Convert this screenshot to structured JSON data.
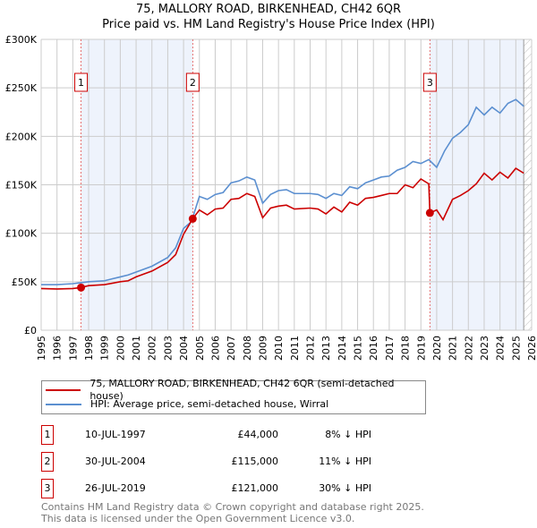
{
  "chart_data": {
    "type": "line",
    "title": "75, MALLORY ROAD, BIRKENHEAD, CH42 6QR",
    "subtitle": "Price paid vs. HM Land Registry's House Price Index (HPI)",
    "xlim": [
      1995,
      2026
    ],
    "ylim": [
      0,
      300000
    ],
    "y_ticks": [
      {
        "v": 0,
        "label": "£0"
      },
      {
        "v": 50000,
        "label": "£50K"
      },
      {
        "v": 100000,
        "label": "£100K"
      },
      {
        "v": 150000,
        "label": "£150K"
      },
      {
        "v": 200000,
        "label": "£200K"
      },
      {
        "v": 250000,
        "label": "£250K"
      },
      {
        "v": 300000,
        "label": "£300K"
      }
    ],
    "x_ticks": [
      "1995",
      "1996",
      "1997",
      "1998",
      "1999",
      "2000",
      "2001",
      "2002",
      "2003",
      "2004",
      "2005",
      "2006",
      "2007",
      "2008",
      "2009",
      "2010",
      "2011",
      "2012",
      "2013",
      "2014",
      "2015",
      "2016",
      "2017",
      "2018",
      "2019",
      "2020",
      "2021",
      "2022",
      "2023",
      "2024",
      "2025",
      "2026"
    ],
    "grid": true,
    "series": [
      {
        "name": "75, MALLORY ROAD, BIRKENHEAD, CH42 6QR (semi-detached house)",
        "color": "#cc0000",
        "x": [
          1995,
          1996,
          1997,
          1997.5,
          1998,
          1999,
          2000,
          2000.5,
          2001,
          2002,
          2003,
          2003.5,
          2004,
          2004.58,
          2005,
          2005.5,
          2006,
          2006.5,
          2007,
          2007.5,
          2008,
          2008.5,
          2009,
          2009.5,
          2010,
          2010.5,
          2011,
          2012,
          2012.5,
          2013,
          2013.5,
          2014,
          2014.5,
          2015,
          2015.5,
          2016,
          2016.5,
          2017,
          2017.5,
          2018,
          2018.5,
          2019,
          2019.5,
          2019.57,
          2020,
          2020.4,
          2021,
          2021.5,
          2022,
          2022.5,
          2023,
          2023.5,
          2024,
          2024.5,
          2025,
          2025.5
        ],
        "y": [
          43000,
          42500,
          43000,
          44000,
          46000,
          47000,
          50000,
          51000,
          55000,
          61000,
          70000,
          78000,
          99000,
          115000,
          124000,
          119000,
          125000,
          126000,
          135000,
          136000,
          141000,
          138000,
          116000,
          126000,
          128000,
          129000,
          125000,
          126000,
          125000,
          120000,
          127000,
          122000,
          132000,
          129000,
          136000,
          137000,
          139000,
          141000,
          141000,
          150000,
          147000,
          156000,
          151000,
          121000,
          124000,
          114000,
          135000,
          139000,
          144000,
          151000,
          162000,
          155000,
          163000,
          157000,
          167000,
          162000
        ]
      },
      {
        "name": "HPI: Average price, semi-detached house, Wirral",
        "color": "#5b8fd0",
        "x": [
          1995,
          1996,
          1997,
          1997.5,
          1998,
          1999,
          2000,
          2000.5,
          2001,
          2002,
          2003,
          2003.5,
          2004,
          2004.5,
          2005,
          2005.5,
          2006,
          2006.5,
          2007,
          2007.5,
          2008,
          2008.5,
          2009,
          2009.5,
          2010,
          2010.5,
          2011,
          2012,
          2012.5,
          2013,
          2013.5,
          2014,
          2014.5,
          2015,
          2015.5,
          2016,
          2016.5,
          2017,
          2017.5,
          2018,
          2018.5,
          2019,
          2019.5,
          2020,
          2020.5,
          2021,
          2021.5,
          2022,
          2022.5,
          2023,
          2023.5,
          2024,
          2024.5,
          2025,
          2025.5
        ],
        "y": [
          47000,
          47000,
          48000,
          49000,
          50000,
          51000,
          55000,
          57000,
          60000,
          66000,
          75000,
          85000,
          105000,
          112000,
          138000,
          135000,
          140000,
          142000,
          152000,
          154000,
          158000,
          155000,
          131000,
          140000,
          144000,
          145000,
          141000,
          141000,
          140000,
          136000,
          141000,
          139000,
          148000,
          146000,
          152000,
          155000,
          158000,
          159000,
          165000,
          168000,
          174000,
          172000,
          176000,
          168000,
          185000,
          198000,
          204000,
          212000,
          230000,
          222000,
          230000,
          224000,
          234000,
          238000,
          231000
        ]
      }
    ],
    "sales": [
      {
        "id": "1",
        "x": 1997.52,
        "y": 44000,
        "date": "10-JUL-1997",
        "price": "£44,000",
        "hpi": "8% ↓ HPI"
      },
      {
        "id": "2",
        "x": 2004.58,
        "y": 115000,
        "date": "30-JUL-2004",
        "price": "£115,000",
        "hpi": "11% ↓ HPI"
      },
      {
        "id": "3",
        "x": 2019.57,
        "y": 121000,
        "date": "26-JUL-2019",
        "price": "£121,000",
        "hpi": "30% ↓ HPI"
      }
    ],
    "shaded_ranges": [
      [
        1997.52,
        2004.58
      ],
      [
        2019.57,
        2025.5
      ]
    ],
    "hatched_from": 2025.5,
    "legend_placement": "below"
  },
  "footer": [
    "Contains HM Land Registry data © Crown copyright and database right 2025.",
    "This data is licensed under the Open Government Licence v3.0."
  ]
}
